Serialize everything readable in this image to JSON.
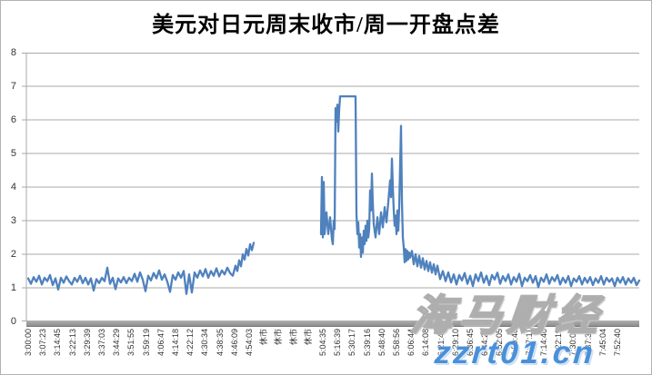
{
  "title": "美元对日元周末收市/周一开盘点差",
  "watermarks": {
    "brand": "海马财经",
    "site": "zzrt01.cn"
  },
  "colors": {
    "line": "#4F81BD",
    "grid": "#a9a9a9",
    "axis_strip": "#9f9f9f",
    "tick_text": "#333333",
    "watermark_site_blue": "#4a90d9"
  },
  "chart_data": {
    "type": "line",
    "title": "美元对日元周末收市/周一开盘点差",
    "xlabel": "",
    "ylabel": "",
    "ylim": [
      0,
      8
    ],
    "yticks": [
      0,
      1,
      2,
      3,
      4,
      5,
      6,
      7,
      8
    ],
    "grid": "horizontal",
    "legend": "none",
    "closed_market_label": "休市",
    "x_tick_labels": [
      "3:00:00",
      "3:07:23",
      "3:14:45",
      "3:22:13",
      "3:29:39",
      "3:37:03",
      "3:44:29",
      "3:51:55",
      "3:59:19",
      "4:06:47",
      "4:14:18",
      "4:22:12",
      "4:30:34",
      "4:38:35",
      "4:46:09",
      "4:54:03",
      "休市",
      "休市",
      "休市",
      "休市",
      "5:04:35",
      "5:16:39",
      "5:30:17",
      "5:39:16",
      "5:48:40",
      "5:58:56",
      "6:06:44",
      "6:14:08",
      "6:21:43",
      "6:29:10",
      "6:36:45",
      "6:44:26",
      "6:52:05",
      "6:59:40",
      "7:07:11",
      "7:14:40",
      "7:22:19",
      "7:30:06",
      "7:37:33",
      "7:45:04",
      "7:52:40"
    ],
    "x_unit": "axis position in px: 0 = left axis (3:00:00), 674 = right edge (~7:52:40); gap between x=250 and x=324 corresponds to the four 休市 (market closed) slots",
    "series": [
      {
        "name": "点差",
        "color": "#4F81BD",
        "segments": [
          [
            [
              2,
              1.28
            ],
            [
              5,
              1.12
            ],
            [
              8,
              1.32
            ],
            [
              11,
              1.18
            ],
            [
              14,
              1.36
            ],
            [
              17,
              1.1
            ],
            [
              20,
              1.3
            ],
            [
              23,
              1.2
            ],
            [
              26,
              1.38
            ],
            [
              29,
              1.08
            ],
            [
              32,
              1.28
            ],
            [
              35,
              0.95
            ],
            [
              38,
              1.3
            ],
            [
              41,
              1.15
            ],
            [
              44,
              1.34
            ],
            [
              47,
              1.2
            ],
            [
              50,
              1.1
            ],
            [
              53,
              1.3
            ],
            [
              56,
              1.18
            ],
            [
              59,
              1.36
            ],
            [
              62,
              1.14
            ],
            [
              65,
              1.3
            ],
            [
              68,
              1.1
            ],
            [
              71,
              1.28
            ],
            [
              74,
              0.92
            ],
            [
              77,
              1.26
            ],
            [
              80,
              1.14
            ],
            [
              83,
              1.3
            ],
            [
              86,
              1.2
            ],
            [
              89,
              1.6
            ],
            [
              92,
              1.12
            ],
            [
              95,
              1.3
            ],
            [
              98,
              0.96
            ],
            [
              101,
              1.28
            ],
            [
              104,
              1.16
            ],
            [
              107,
              1.32
            ],
            [
              110,
              1.14
            ],
            [
              113,
              1.3
            ],
            [
              116,
              1.2
            ],
            [
              119,
              1.42
            ],
            [
              122,
              1.18
            ],
            [
              125,
              1.46
            ],
            [
              128,
              1.24
            ],
            [
              131,
              0.9
            ],
            [
              134,
              1.36
            ],
            [
              137,
              1.22
            ],
            [
              140,
              1.44
            ],
            [
              143,
              1.28
            ],
            [
              146,
              1.52
            ],
            [
              149,
              1.24
            ],
            [
              152,
              1.4
            ],
            [
              155,
              1.18
            ],
            [
              158,
              0.88
            ],
            [
              161,
              1.38
            ],
            [
              164,
              1.24
            ],
            [
              167,
              1.46
            ],
            [
              170,
              1.3
            ],
            [
              173,
              1.5
            ],
            [
              176,
              0.82
            ],
            [
              179,
              1.4
            ],
            [
              182,
              0.86
            ],
            [
              185,
              1.46
            ],
            [
              188,
              1.3
            ],
            [
              191,
              1.52
            ],
            [
              194,
              1.34
            ],
            [
              197,
              1.56
            ],
            [
              200,
              1.3
            ],
            [
              203,
              1.5
            ],
            [
              206,
              1.36
            ],
            [
              209,
              1.58
            ],
            [
              212,
              1.34
            ],
            [
              215,
              1.52
            ],
            [
              218,
              1.4
            ],
            [
              221,
              1.6
            ],
            [
              224,
              1.44
            ],
            [
              227,
              1.36
            ],
            [
              230,
              1.66
            ],
            [
              232,
              1.5
            ],
            [
              234,
              1.82
            ],
            [
              236,
              1.64
            ],
            [
              238,
              2.0
            ],
            [
              240,
              1.84
            ],
            [
              242,
              2.16
            ],
            [
              244,
              1.96
            ],
            [
              246,
              2.3
            ],
            [
              248,
              2.12
            ],
            [
              250,
              2.34
            ]
          ],
          [
            [
              324,
              2.6
            ],
            [
              325,
              4.3
            ],
            [
              326,
              2.5
            ],
            [
              327,
              4.15
            ],
            [
              328,
              2.6
            ],
            [
              330,
              3.25
            ],
            [
              332,
              2.6
            ],
            [
              334,
              3.1
            ],
            [
              336,
              2.45
            ],
            [
              337,
              2.3
            ],
            [
              338,
              3.0
            ],
            [
              339,
              2.75
            ],
            [
              340,
              6.35
            ],
            [
              341,
              5.95
            ],
            [
              342,
              6.45
            ],
            [
              343,
              5.65
            ],
            [
              344,
              6.3
            ],
            [
              345,
              6.7
            ],
            [
              362,
              6.7
            ],
            [
              363,
              3.2
            ],
            [
              364,
              2.6
            ],
            [
              365,
              2.95
            ],
            [
              366,
              2.2
            ],
            [
              367,
              2.6
            ],
            [
              368,
              1.92
            ],
            [
              369,
              2.5
            ],
            [
              370,
              2.05
            ],
            [
              371,
              2.7
            ],
            [
              372,
              2.3
            ],
            [
              373,
              2.85
            ],
            [
              374,
              2.4
            ],
            [
              375,
              3.0
            ],
            [
              376,
              2.5
            ],
            [
              377,
              2.75
            ],
            [
              378,
              3.9
            ],
            [
              379,
              3.3
            ],
            [
              380,
              4.4
            ],
            [
              381,
              3.5
            ],
            [
              382,
              2.9
            ],
            [
              384,
              2.5
            ],
            [
              386,
              3.1
            ],
            [
              388,
              2.6
            ],
            [
              390,
              3.25
            ],
            [
              392,
              2.8
            ],
            [
              394,
              3.4
            ],
            [
              396,
              2.95
            ],
            [
              398,
              3.55
            ],
            [
              400,
              4.2
            ],
            [
              401,
              3.7
            ],
            [
              402,
              4.85
            ],
            [
              403,
              4.0
            ],
            [
              404,
              3.3
            ],
            [
              405,
              2.85
            ],
            [
              406,
              3.15
            ],
            [
              407,
              2.6
            ],
            [
              408,
              3.3
            ],
            [
              409,
              2.7
            ],
            [
              410,
              3.4
            ],
            [
              411,
              4.6
            ],
            [
              412,
              5.82
            ],
            [
              413,
              3.6
            ],
            [
              414,
              2.5
            ],
            [
              415,
              2.2
            ],
            [
              416,
              1.76
            ],
            [
              417,
              2.15
            ],
            [
              418,
              1.8
            ],
            [
              419,
              2.1
            ],
            [
              420,
              1.85
            ],
            [
              421,
              2.05
            ],
            [
              422,
              1.9
            ],
            [
              424,
              2.1
            ],
            [
              426,
              1.7
            ],
            [
              428,
              2.0
            ],
            [
              430,
              1.64
            ],
            [
              432,
              1.95
            ],
            [
              434,
              1.6
            ],
            [
              436,
              1.88
            ],
            [
              438,
              1.55
            ],
            [
              440,
              1.8
            ],
            [
              442,
              1.5
            ],
            [
              444,
              1.76
            ],
            [
              446,
              1.45
            ],
            [
              448,
              1.7
            ],
            [
              450,
              1.4
            ],
            [
              452,
              1.66
            ],
            [
              455,
              1.26
            ],
            [
              458,
              1.5
            ],
            [
              461,
              1.2
            ],
            [
              464,
              1.46
            ],
            [
              467,
              1.16
            ],
            [
              470,
              1.4
            ],
            [
              473,
              1.1
            ],
            [
              476,
              1.38
            ],
            [
              479,
              1.22
            ],
            [
              482,
              1.44
            ],
            [
              485,
              1.12
            ],
            [
              488,
              1.36
            ],
            [
              491,
              1.05
            ],
            [
              494,
              1.4
            ],
            [
              497,
              1.2
            ],
            [
              500,
              1.46
            ],
            [
              503,
              1.15
            ],
            [
              506,
              1.36
            ],
            [
              509,
              1.08
            ],
            [
              512,
              1.38
            ],
            [
              515,
              1.25
            ],
            [
              518,
              1.45
            ],
            [
              521,
              1.12
            ],
            [
              524,
              1.35
            ],
            [
              527,
              1.2
            ],
            [
              530,
              1.4
            ],
            [
              533,
              1.1
            ],
            [
              536,
              1.32
            ],
            [
              539,
              1.18
            ],
            [
              542,
              1.42
            ],
            [
              545,
              1.05
            ],
            [
              548,
              1.3
            ],
            [
              551,
              1.2
            ],
            [
              554,
              1.38
            ],
            [
              557,
              1.15
            ],
            [
              560,
              1.35
            ],
            [
              563,
              1.02
            ],
            [
              566,
              1.3
            ],
            [
              569,
              1.18
            ],
            [
              572,
              1.4
            ],
            [
              575,
              1.12
            ],
            [
              578,
              1.32
            ],
            [
              581,
              1.2
            ],
            [
              584,
              1.38
            ],
            [
              587,
              1.1
            ],
            [
              590,
              1.3
            ],
            [
              593,
              1.15
            ],
            [
              596,
              1.35
            ],
            [
              599,
              1.05
            ],
            [
              602,
              1.28
            ],
            [
              605,
              1.18
            ],
            [
              608,
              1.35
            ],
            [
              611,
              1.1
            ],
            [
              614,
              1.3
            ],
            [
              617,
              1.15
            ],
            [
              620,
              1.32
            ],
            [
              623,
              1.08
            ],
            [
              626,
              1.28
            ],
            [
              629,
              1.15
            ],
            [
              632,
              1.35
            ],
            [
              635,
              1.1
            ],
            [
              638,
              1.3
            ],
            [
              641,
              1.18
            ],
            [
              644,
              1.28
            ],
            [
              647,
              1.05
            ],
            [
              650,
              1.3
            ],
            [
              653,
              1.15
            ],
            [
              656,
              1.32
            ],
            [
              659,
              1.1
            ],
            [
              662,
              1.28
            ],
            [
              665,
              1.15
            ],
            [
              668,
              1.3
            ],
            [
              671,
              1.08
            ],
            [
              674,
              1.22
            ]
          ]
        ]
      }
    ]
  }
}
